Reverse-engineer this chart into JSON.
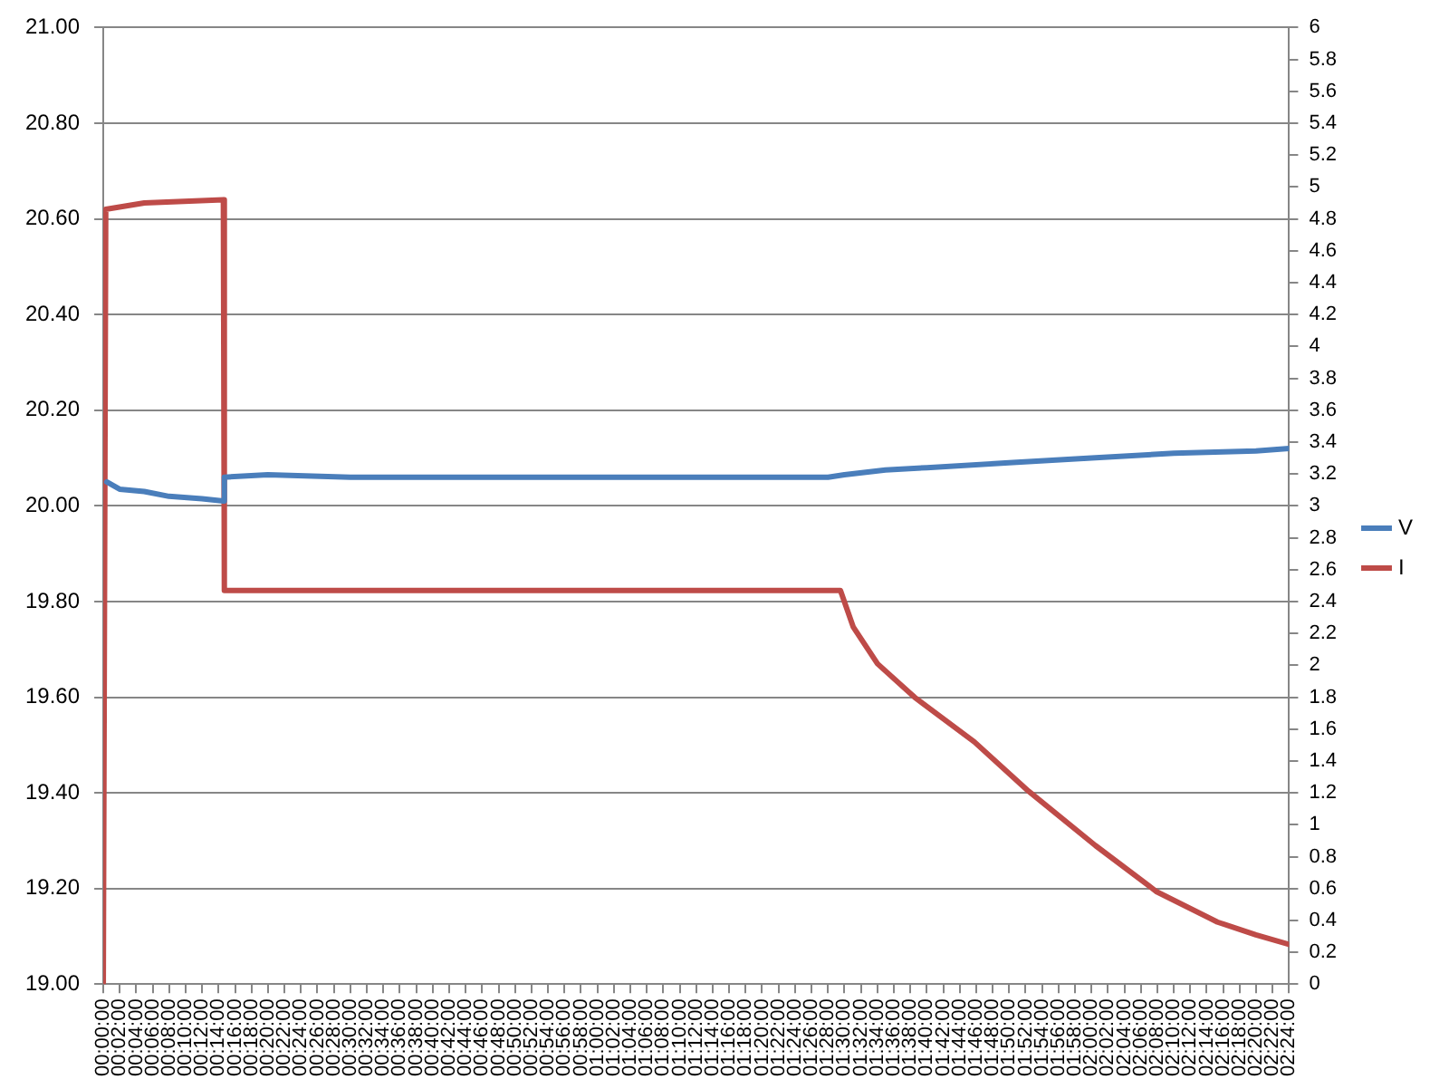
{
  "chart_data": {
    "type": "line",
    "xlim": [
      0,
      2.4
    ],
    "xticks": [
      {
        "value": 0,
        "label": "00:00:00"
      },
      {
        "value": 0.0333,
        "label": "00:02:00"
      },
      {
        "value": 0.0667,
        "label": "00:04:00"
      },
      {
        "value": 0.1,
        "label": "00:06:00"
      },
      {
        "value": 0.1333,
        "label": "00:08:00"
      },
      {
        "value": 0.1667,
        "label": "00:10:00"
      },
      {
        "value": 0.2,
        "label": "00:12:00"
      },
      {
        "value": 0.2333,
        "label": "00:14:00"
      },
      {
        "value": 0.2667,
        "label": "00:16:00"
      },
      {
        "value": 0.3,
        "label": "00:18:00"
      },
      {
        "value": 0.3333,
        "label": "00:20:00"
      },
      {
        "value": 0.3667,
        "label": "00:22:00"
      },
      {
        "value": 0.4,
        "label": "00:24:00"
      },
      {
        "value": 0.4333,
        "label": "00:26:00"
      },
      {
        "value": 0.4667,
        "label": "00:28:00"
      },
      {
        "value": 0.5,
        "label": "00:30:00"
      },
      {
        "value": 0.5333,
        "label": "00:32:00"
      },
      {
        "value": 0.5667,
        "label": "00:34:00"
      },
      {
        "value": 0.6,
        "label": "00:36:00"
      },
      {
        "value": 0.6333,
        "label": "00:38:00"
      },
      {
        "value": 0.6667,
        "label": "00:40:00"
      },
      {
        "value": 0.7,
        "label": "00:42:00"
      },
      {
        "value": 0.7333,
        "label": "00:44:00"
      },
      {
        "value": 0.7667,
        "label": "00:46:00"
      },
      {
        "value": 0.8,
        "label": "00:48:00"
      },
      {
        "value": 0.8333,
        "label": "00:50:00"
      },
      {
        "value": 0.8667,
        "label": "00:52:00"
      },
      {
        "value": 0.9,
        "label": "00:54:00"
      },
      {
        "value": 0.9333,
        "label": "00:56:00"
      },
      {
        "value": 0.9667,
        "label": "00:58:00"
      },
      {
        "value": 1,
        "label": "01:00:00"
      },
      {
        "value": 1.0333,
        "label": "01:02:00"
      },
      {
        "value": 1.0667,
        "label": "01:04:00"
      },
      {
        "value": 1.1,
        "label": "01:06:00"
      },
      {
        "value": 1.1333,
        "label": "01:08:00"
      },
      {
        "value": 1.1667,
        "label": "01:10:00"
      },
      {
        "value": 1.2,
        "label": "01:12:00"
      },
      {
        "value": 1.2333,
        "label": "01:14:00"
      },
      {
        "value": 1.2667,
        "label": "01:16:00"
      },
      {
        "value": 1.3,
        "label": "01:18:00"
      },
      {
        "value": 1.3333,
        "label": "01:20:00"
      },
      {
        "value": 1.3667,
        "label": "01:22:00"
      },
      {
        "value": 1.4,
        "label": "01:24:00"
      },
      {
        "value": 1.4333,
        "label": "01:26:00"
      },
      {
        "value": 1.4667,
        "label": "01:28:00"
      },
      {
        "value": 1.5,
        "label": "01:30:00"
      },
      {
        "value": 1.5333,
        "label": "01:32:00"
      },
      {
        "value": 1.5667,
        "label": "01:34:00"
      },
      {
        "value": 1.6,
        "label": "01:36:00"
      },
      {
        "value": 1.6333,
        "label": "01:38:00"
      },
      {
        "value": 1.6667,
        "label": "01:40:00"
      },
      {
        "value": 1.7,
        "label": "01:42:00"
      },
      {
        "value": 1.7333,
        "label": "01:44:00"
      },
      {
        "value": 1.7667,
        "label": "01:46:00"
      },
      {
        "value": 1.8,
        "label": "01:48:00"
      },
      {
        "value": 1.8333,
        "label": "01:50:00"
      },
      {
        "value": 1.8667,
        "label": "01:52:00"
      },
      {
        "value": 1.9,
        "label": "01:54:00"
      },
      {
        "value": 1.9333,
        "label": "01:56:00"
      },
      {
        "value": 1.9667,
        "label": "01:58:00"
      },
      {
        "value": 2,
        "label": "02:00:00"
      },
      {
        "value": 2.0333,
        "label": "02:02:00"
      },
      {
        "value": 2.0667,
        "label": "02:04:00"
      },
      {
        "value": 2.1,
        "label": "02:06:00"
      },
      {
        "value": 2.1333,
        "label": "02:08:00"
      },
      {
        "value": 2.1667,
        "label": "02:10:00"
      },
      {
        "value": 2.2,
        "label": "02:12:00"
      },
      {
        "value": 2.2333,
        "label": "02:14:00"
      },
      {
        "value": 2.2667,
        "label": "02:16:00"
      },
      {
        "value": 2.3,
        "label": "02:18:00"
      },
      {
        "value": 2.3333,
        "label": "02:20:00"
      },
      {
        "value": 2.3667,
        "label": "02:22:00"
      },
      {
        "value": 2.4,
        "label": "02:24:00"
      }
    ],
    "ylim": [
      19,
      21
    ],
    "yticks": [
      {
        "value": 19,
        "label": "19.00"
      },
      {
        "value": 19.2,
        "label": "19.20"
      },
      {
        "value": 19.4,
        "label": "19.40"
      },
      {
        "value": 19.6,
        "label": "19.60"
      },
      {
        "value": 19.8,
        "label": "19.80"
      },
      {
        "value": 20,
        "label": "20.00"
      },
      {
        "value": 20.2,
        "label": "20.20"
      },
      {
        "value": 20.4,
        "label": "20.40"
      },
      {
        "value": 20.6,
        "label": "20.60"
      },
      {
        "value": 20.8,
        "label": "20.80"
      },
      {
        "value": 21,
        "label": "21.00"
      }
    ],
    "y2lim": [
      0,
      6
    ],
    "y2ticks": [
      0,
      0.2,
      0.4,
      0.6,
      0.8,
      1,
      1.2,
      1.4,
      1.6,
      1.8,
      2,
      2.2,
      2.4,
      2.6,
      2.8,
      3,
      3.2,
      3.4,
      3.6,
      3.8,
      4,
      4.2,
      4.4,
      4.6,
      4.8,
      5,
      5.2,
      5.4,
      5.6,
      5.8,
      6
    ],
    "grid": "y",
    "legend": "right",
    "marker": "none",
    "series": [
      {
        "name": "V",
        "color": "#4a7ebb",
        "x": [
          0.007,
          0.033,
          0.083,
          0.133,
          0.2,
          0.243,
          0.245,
          0.333,
          0.5,
          0.667,
          0.833,
          1,
          1.167,
          1.333,
          1.467,
          1.5,
          1.583,
          1.667,
          1.833,
          2,
          2.167,
          2.333,
          2.4
        ],
        "values": [
          20.05,
          20.035,
          20.03,
          20.02,
          20.015,
          20.01,
          20.06,
          20.065,
          20.06,
          20.06,
          20.06,
          20.06,
          20.06,
          20.06,
          20.06,
          20.065,
          20.075,
          20.08,
          20.09,
          20.1,
          20.11,
          20.115,
          20.12
        ]
      },
      {
        "name": "I",
        "color": "#be4b48",
        "axis": "y2",
        "x": [
          0,
          0.005,
          0.083,
          0.243,
          0.245,
          0.5,
          1,
          1.492,
          1.518,
          1.567,
          1.642,
          1.763,
          1.873,
          2.008,
          2.132,
          2.255,
          2.333,
          2.4
        ],
        "values": [
          0,
          4.86,
          4.9,
          4.92,
          2.47,
          2.47,
          2.47,
          2.47,
          2.24,
          2.01,
          1.8,
          1.52,
          1.21,
          0.87,
          0.58,
          0.39,
          0.31,
          0.25
        ]
      }
    ]
  }
}
